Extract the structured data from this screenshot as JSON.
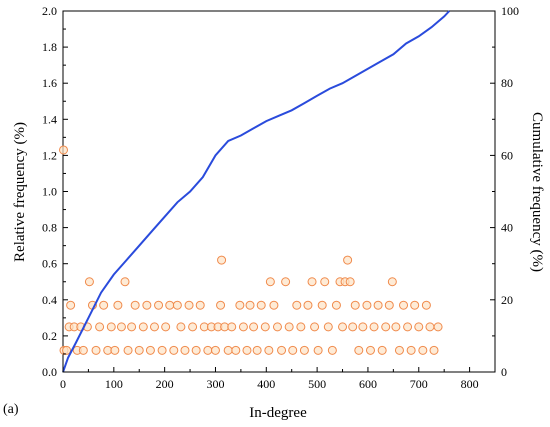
{
  "chart_data": {
    "type": "scatter",
    "panel_label": "(a)",
    "xlabel": "In-degree",
    "ylabel": "Relative frequency (%)",
    "y2label": "Cumulative frequency (%)",
    "xlim": [
      0,
      850
    ],
    "ylim": [
      0,
      2.0
    ],
    "y2lim": [
      0,
      100
    ],
    "xticks": [
      0,
      100,
      200,
      300,
      400,
      500,
      600,
      700,
      800
    ],
    "yticks": [
      0.0,
      0.2,
      0.4,
      0.6,
      0.8,
      1.0,
      1.2,
      1.4,
      1.6,
      1.8,
      2.0
    ],
    "y2ticks": [
      0,
      20,
      40,
      60,
      80,
      100
    ],
    "ytick_labels": [
      "0.0",
      "0.2",
      "0.4",
      "0.6",
      "0.8",
      "1.0",
      "1.2",
      "1.4",
      "1.6",
      "1.8",
      "2.0"
    ],
    "grid": false,
    "series": [
      {
        "kind": "scatter",
        "axis": "left",
        "color": "#f08a4b",
        "fill": "#fde3c4",
        "points": [
          [
            1,
            1.23
          ],
          [
            2,
            0.12
          ],
          [
            7,
            0.12
          ],
          [
            12,
            0.25
          ],
          [
            15,
            0.37
          ],
          [
            22,
            0.25
          ],
          [
            28,
            0.12
          ],
          [
            35,
            0.25
          ],
          [
            40,
            0.12
          ],
          [
            48,
            0.25
          ],
          [
            52,
            0.5
          ],
          [
            58,
            0.37
          ],
          [
            65,
            0.12
          ],
          [
            72,
            0.25
          ],
          [
            80,
            0.37
          ],
          [
            88,
            0.12
          ],
          [
            95,
            0.25
          ],
          [
            102,
            0.12
          ],
          [
            108,
            0.37
          ],
          [
            115,
            0.25
          ],
          [
            122,
            0.5
          ],
          [
            128,
            0.12
          ],
          [
            135,
            0.25
          ],
          [
            142,
            0.37
          ],
          [
            150,
            0.12
          ],
          [
            158,
            0.25
          ],
          [
            165,
            0.37
          ],
          [
            172,
            0.12
          ],
          [
            180,
            0.25
          ],
          [
            188,
            0.37
          ],
          [
            195,
            0.12
          ],
          [
            202,
            0.25
          ],
          [
            210,
            0.37
          ],
          [
            218,
            0.12
          ],
          [
            225,
            0.37
          ],
          [
            232,
            0.25
          ],
          [
            240,
            0.12
          ],
          [
            248,
            0.37
          ],
          [
            255,
            0.25
          ],
          [
            262,
            0.12
          ],
          [
            270,
            0.37
          ],
          [
            278,
            0.25
          ],
          [
            285,
            0.12
          ],
          [
            292,
            0.25
          ],
          [
            300,
            0.12
          ],
          [
            305,
            0.25
          ],
          [
            310,
            0.37
          ],
          [
            312,
            0.62
          ],
          [
            318,
            0.25
          ],
          [
            325,
            0.12
          ],
          [
            332,
            0.25
          ],
          [
            340,
            0.12
          ],
          [
            348,
            0.37
          ],
          [
            355,
            0.25
          ],
          [
            362,
            0.12
          ],
          [
            368,
            0.37
          ],
          [
            375,
            0.25
          ],
          [
            382,
            0.12
          ],
          [
            390,
            0.37
          ],
          [
            398,
            0.25
          ],
          [
            405,
            0.12
          ],
          [
            408,
            0.5
          ],
          [
            415,
            0.37
          ],
          [
            422,
            0.25
          ],
          [
            430,
            0.12
          ],
          [
            438,
            0.5
          ],
          [
            445,
            0.25
          ],
          [
            452,
            0.12
          ],
          [
            460,
            0.37
          ],
          [
            468,
            0.25
          ],
          [
            475,
            0.12
          ],
          [
            482,
            0.37
          ],
          [
            490,
            0.5
          ],
          [
            495,
            0.25
          ],
          [
            502,
            0.12
          ],
          [
            510,
            0.37
          ],
          [
            515,
            0.5
          ],
          [
            522,
            0.25
          ],
          [
            530,
            0.12
          ],
          [
            538,
            0.37
          ],
          [
            545,
            0.5
          ],
          [
            550,
            0.25
          ],
          [
            555,
            0.5
          ],
          [
            560,
            0.62
          ],
          [
            565,
            0.5
          ],
          [
            570,
            0.25
          ],
          [
            575,
            0.37
          ],
          [
            582,
            0.12
          ],
          [
            590,
            0.25
          ],
          [
            598,
            0.37
          ],
          [
            605,
            0.12
          ],
          [
            612,
            0.25
          ],
          [
            620,
            0.37
          ],
          [
            628,
            0.12
          ],
          [
            635,
            0.25
          ],
          [
            642,
            0.37
          ],
          [
            648,
            0.5
          ],
          [
            655,
            0.25
          ],
          [
            662,
            0.12
          ],
          [
            670,
            0.37
          ],
          [
            678,
            0.25
          ],
          [
            685,
            0.12
          ],
          [
            692,
            0.37
          ],
          [
            700,
            0.25
          ],
          [
            708,
            0.12
          ],
          [
            715,
            0.37
          ],
          [
            722,
            0.25
          ],
          [
            730,
            0.12
          ],
          [
            738,
            0.25
          ]
        ]
      },
      {
        "kind": "line",
        "axis": "right",
        "color": "#2a4bdc",
        "points": [
          [
            0,
            0
          ],
          [
            10,
            4
          ],
          [
            25,
            8
          ],
          [
            50,
            15
          ],
          [
            75,
            22
          ],
          [
            100,
            27
          ],
          [
            125,
            31
          ],
          [
            150,
            35
          ],
          [
            175,
            39
          ],
          [
            200,
            43
          ],
          [
            225,
            47
          ],
          [
            250,
            50
          ],
          [
            275,
            54
          ],
          [
            300,
            60
          ],
          [
            325,
            64
          ],
          [
            350,
            65.5
          ],
          [
            375,
            67.5
          ],
          [
            400,
            69.5
          ],
          [
            425,
            71
          ],
          [
            450,
            72.5
          ],
          [
            475,
            74.5
          ],
          [
            500,
            76.5
          ],
          [
            525,
            78.5
          ],
          [
            550,
            80
          ],
          [
            575,
            82
          ],
          [
            600,
            84
          ],
          [
            625,
            86
          ],
          [
            650,
            88
          ],
          [
            675,
            91
          ],
          [
            700,
            93
          ],
          [
            725,
            95.5
          ],
          [
            750,
            98.5
          ],
          [
            760,
            100
          ]
        ]
      }
    ]
  }
}
